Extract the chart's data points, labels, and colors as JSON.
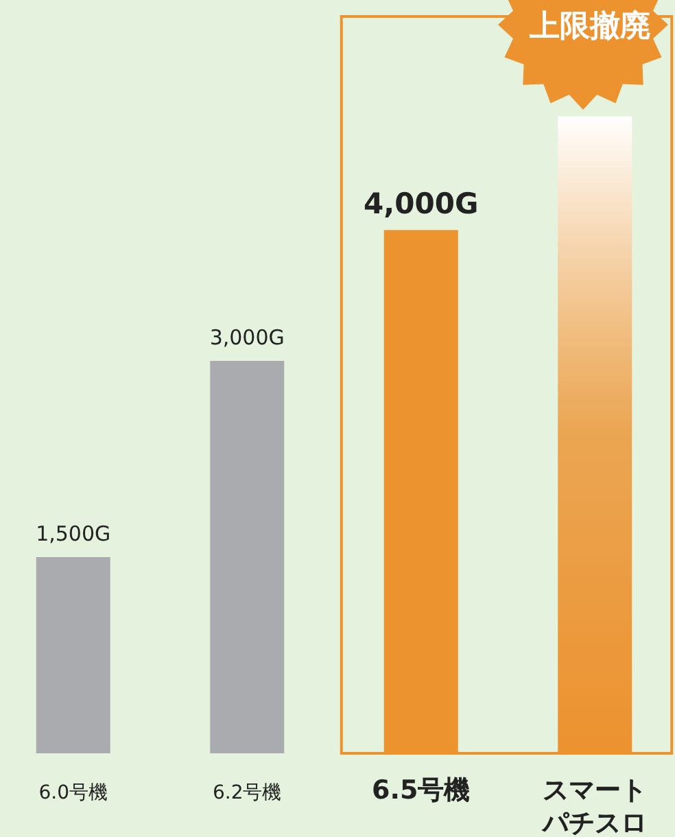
{
  "chart_data": {
    "type": "bar",
    "categories": [
      "6.0号機",
      "6.2号機",
      "6.5号機",
      "スマートパチスロ"
    ],
    "values": [
      1500,
      3000,
      4000,
      4870
    ],
    "colors": [
      "#aaabaf",
      "#aaabaf",
      "#ec922f",
      "#ec922f"
    ],
    "value_labels": [
      "1,500G",
      "3,000G",
      "4,000G",
      null
    ],
    "annotations": [
      "上限撤廃"
    ]
  }
}
